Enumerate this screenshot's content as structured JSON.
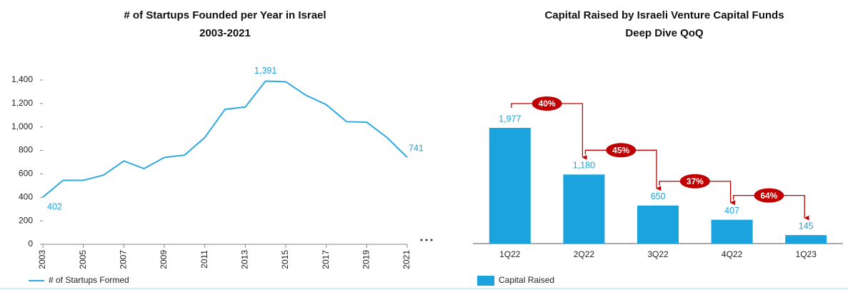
{
  "chart_data": [
    {
      "type": "line",
      "title": "# of Startups Founded per Year in Israel",
      "subtitle": "2003-2021",
      "x": [
        2003,
        2004,
        2005,
        2006,
        2007,
        2008,
        2009,
        2010,
        2011,
        2012,
        2013,
        2014,
        2015,
        2016,
        2017,
        2018,
        2019,
        2020,
        2021
      ],
      "series": [
        {
          "name": "# of Startups Formed",
          "color": "#2eaae1",
          "values": [
            402,
            545,
            545,
            590,
            710,
            645,
            740,
            760,
            910,
            1150,
            1170,
            1391,
            1385,
            1270,
            1190,
            1045,
            1040,
            910,
            741
          ],
          "value_labels": [
            "402",
            null,
            null,
            null,
            null,
            null,
            null,
            null,
            null,
            null,
            null,
            "1,391",
            null,
            null,
            null,
            null,
            null,
            null,
            "741"
          ]
        }
      ],
      "xlim": [
        2003,
        2021
      ],
      "xticks": [
        2003,
        2005,
        2007,
        2009,
        2011,
        2013,
        2015,
        2017,
        2019,
        2021
      ],
      "ylim": [
        0,
        1400
      ],
      "yticks": [
        0,
        200,
        400,
        600,
        800,
        {
          "value": 1000,
          "label": "1,000"
        },
        {
          "value": 1200,
          "label": "1,200"
        },
        {
          "value": 1400,
          "label": "1,400"
        }
      ]
    },
    {
      "type": "bar",
      "title": "Capital Raised by Israeli Venture Capital Funds",
      "subtitle": "Deep Dive QoQ",
      "categories": [
        "1Q22",
        "2Q22",
        "3Q22",
        "4Q22",
        "1Q23"
      ],
      "series": [
        {
          "name": "Capital Raised",
          "color": "#1aa3dc",
          "values": [
            1977,
            1180,
            650,
            407,
            145
          ],
          "value_labels": [
            "1,977",
            "1,180",
            "650",
            "407",
            "145"
          ]
        }
      ],
      "changes": [
        40,
        45,
        37,
        64
      ],
      "change_labels": [
        "40%",
        "45%",
        "37%",
        "64%"
      ],
      "change_color": "#c00000"
    }
  ]
}
